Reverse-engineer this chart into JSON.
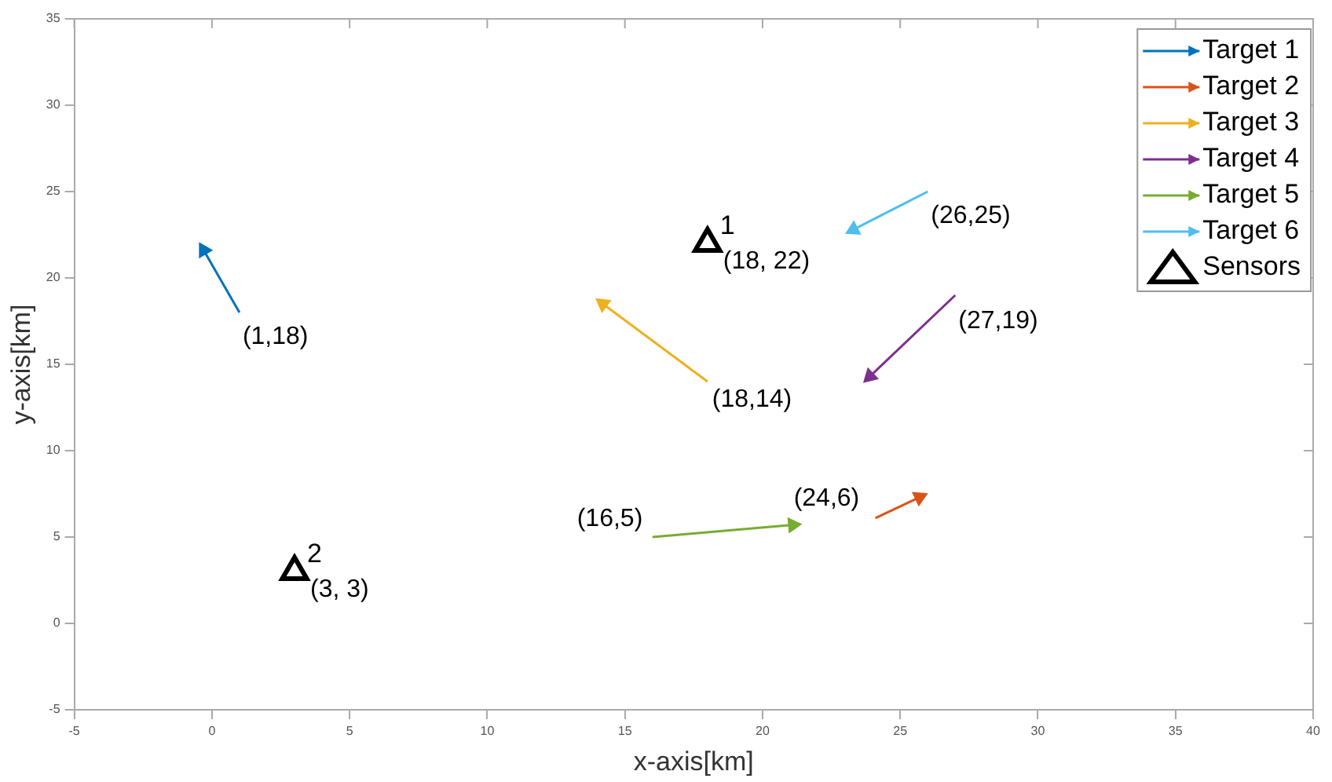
{
  "chart_data": {
    "type": "line",
    "xlabel": "x-axis[km]",
    "ylabel": "y-axis[km]",
    "xlim": [
      -5,
      40
    ],
    "xticks": [
      -5,
      0,
      5,
      10,
      15,
      20,
      25,
      30,
      35,
      40
    ],
    "ylim": [
      -5,
      35
    ],
    "yticks": [
      -5,
      0,
      5,
      10,
      15,
      20,
      25,
      30,
      35
    ],
    "grid": false,
    "legend": "top right",
    "series": [
      {
        "name": "Target 1",
        "color": "#0072bd",
        "x": [
          1,
          -0.3
        ],
        "values": [
          18,
          21.6
        ]
      },
      {
        "name": "Target 2",
        "color": "#d95319",
        "x": [
          24.1,
          25.7
        ],
        "values": [
          6.1,
          7.3
        ]
      },
      {
        "name": "Target 3",
        "color": "#edb120",
        "x": [
          18,
          14.2
        ],
        "values": [
          14,
          18.5
        ]
      },
      {
        "name": "Target 4",
        "color": "#7e2f8e",
        "x": [
          27,
          23.9
        ],
        "values": [
          19,
          14.3
        ]
      },
      {
        "name": "Target 5",
        "color": "#77ac30",
        "x": [
          16,
          21.1
        ],
        "values": [
          5,
          5.7
        ]
      },
      {
        "name": "Target 6",
        "color": "#4dbeee",
        "x": [
          26,
          23.3
        ],
        "values": [
          25,
          22.8
        ]
      },
      {
        "name": "Sensors",
        "type": "scatter",
        "marker": "triangle",
        "color": "#000000",
        "x": [
          18,
          3
        ],
        "values": [
          22,
          3
        ]
      }
    ],
    "annotations": [
      {
        "text": "(1,18)",
        "x": 1,
        "y": 18
      },
      {
        "text": "(24,6)",
        "x": 24.1,
        "y": 6.1
      },
      {
        "text": "(18,14)",
        "x": 18,
        "y": 14
      },
      {
        "text": "(27,19)",
        "x": 27,
        "y": 19
      },
      {
        "text": "(16,5)",
        "x": 16,
        "y": 5
      },
      {
        "text": "(26,25)",
        "x": 26,
        "y": 25
      },
      {
        "text": "1",
        "x": 18,
        "y": 22
      },
      {
        "text": "(18, 22)",
        "x": 18,
        "y": 22
      },
      {
        "text": "2",
        "x": 3,
        "y": 3
      },
      {
        "text": "(3, 3)",
        "x": 3,
        "y": 3
      }
    ]
  }
}
